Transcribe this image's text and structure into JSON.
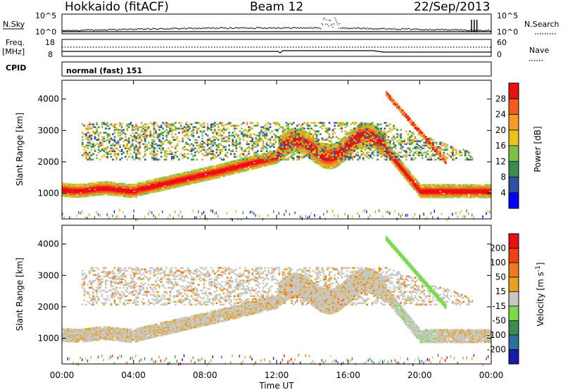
{
  "header": {
    "station": "Hokkaido (fitACF)",
    "beam": "Beam 12",
    "date": "22/Sep/2013"
  },
  "top_panels": {
    "nsky_label": "N.Sky",
    "nsky_ticks": [
      "10^5",
      "10^0"
    ],
    "nsky_right_ticks": [
      "10^5",
      "10^0"
    ],
    "nsearch_label": "N.Search",
    "freq_label": "Freq.",
    "freq_unit": "[MHz]",
    "freq_ticks": [
      "18",
      "8"
    ],
    "nave_ticks": [
      "60",
      "0"
    ],
    "nave_label": "Nave",
    "cpid_label": "CPID",
    "cpid_value": "normal (fast) 151"
  },
  "colors": {
    "power_scale": [
      "#0000ff",
      "#2b52a6",
      "#3c8a50",
      "#7cbf4a",
      "#e8c21e",
      "#f59a26",
      "#f55a1a",
      "#e81010"
    ],
    "velocity_scale": [
      "#1a1aaa",
      "#2f6f9f",
      "#3c8a50",
      "#7ad94a",
      "#c8c8c0",
      "#e8a020",
      "#f07a1a",
      "#f04010",
      "#e81010"
    ],
    "ground_scatter": "#c8c8c0"
  },
  "chart_data": [
    {
      "type": "heatmap",
      "title": "Power",
      "ylabel": "Slant Range [km]",
      "ylim": [
        180,
        4600
      ],
      "yticks": [
        1000,
        2000,
        3000,
        4000
      ],
      "xlim": [
        "00:00",
        "24:00"
      ],
      "colorbar": {
        "label": "Power [dB]",
        "ticks": [
          4,
          8,
          12,
          16,
          20,
          24,
          28
        ],
        "range": [
          0,
          32
        ]
      },
      "grid": false
    },
    {
      "type": "heatmap",
      "title": "Velocity",
      "ylabel": "Slant Range [km]",
      "ylim": [
        180,
        4600
      ],
      "yticks": [
        1000,
        2000,
        3000,
        4000
      ],
      "xlabel": "Time UT",
      "xticks": [
        "00:00",
        "04:00",
        "08:00",
        "12:00",
        "16:00",
        "20:00",
        "00:00"
      ],
      "colorbar": {
        "label": "Velocity [m s^-1]",
        "ticks": [
          200,
          100,
          50,
          15,
          -15,
          -50,
          -100,
          -200
        ]
      },
      "grid": false
    }
  ]
}
